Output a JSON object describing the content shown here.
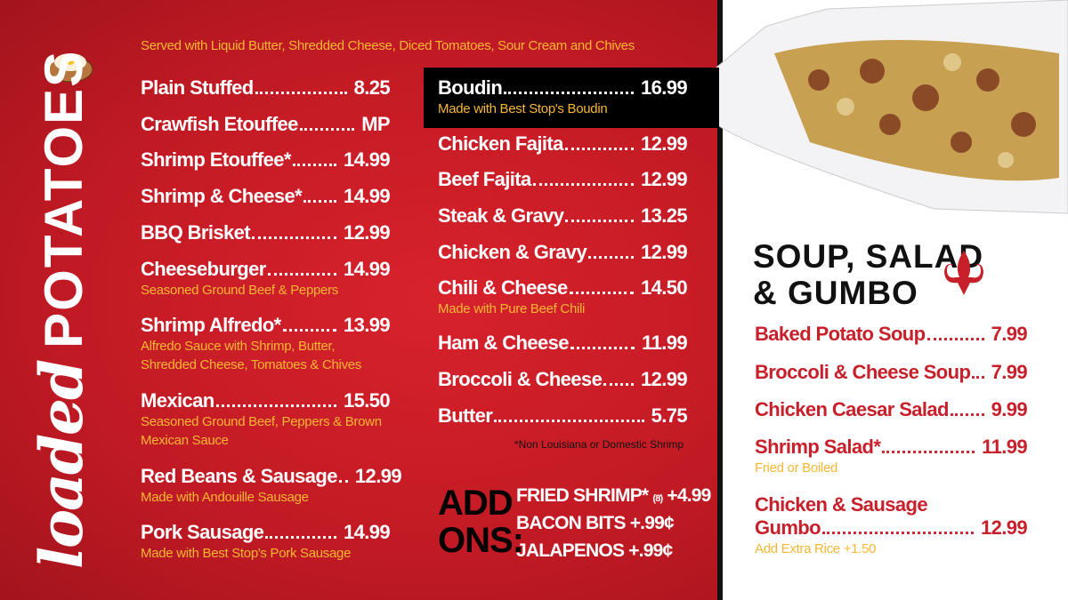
{
  "colors": {
    "red": "#c8202b",
    "accent": "#f7b733",
    "black": "#000000",
    "white": "#ffffff"
  },
  "loaded": {
    "title_script": "loaded",
    "title_block": "POTATOES",
    "intro": "Served with Liquid Butter, Shredded Cheese, Diced Tomatoes, Sour Cream and Chives",
    "left": [
      {
        "name": "Plain Stuffed",
        "price": "8.25"
      },
      {
        "name": "Crawfish Etouffee",
        "price": "MP"
      },
      {
        "name": "Shrimp Etouffee*",
        "price": "14.99"
      },
      {
        "name": "Shrimp & Cheese*",
        "price": "14.99"
      },
      {
        "name": "BBQ Brisket",
        "price": "12.99"
      },
      {
        "name": "Cheeseburger",
        "price": "14.99",
        "desc": [
          "Seasoned Ground Beef & Peppers"
        ]
      },
      {
        "name": "Shrimp Alfredo*",
        "price": "13.99",
        "desc": [
          "Alfredo Sauce with Shrimp, Butter,",
          "Shredded Cheese, Tomatoes & Chives"
        ]
      },
      {
        "name": "Mexican",
        "price": "15.50",
        "desc": [
          "Seasoned Ground Beef, Peppers & Brown",
          "Mexican Sauce"
        ]
      },
      {
        "name": "Red Beans & Sausage",
        "price": "12.99",
        "desc": [
          "Made with Andouille Sausage"
        ]
      },
      {
        "name": "Pork Sausage",
        "price": "14.99",
        "desc": [
          "Made with Best Stop's Pork Sausage"
        ]
      }
    ],
    "middle": [
      {
        "name": "Boudin",
        "price": "16.99",
        "desc": [
          "Made with Best Stop's Boudin"
        ]
      },
      {
        "name": "Chicken Fajita",
        "price": "12.99"
      },
      {
        "name": "Beef Fajita",
        "price": "12.99"
      },
      {
        "name": "Steak & Gravy",
        "price": "13.25"
      },
      {
        "name": "Chicken & Gravy",
        "price": "12.99"
      },
      {
        "name": "Chili & Cheese",
        "price": "14.50",
        "desc": [
          "Made with Pure Beef Chili"
        ]
      },
      {
        "name": "Ham & Cheese",
        "price": "11.99"
      },
      {
        "name": "Broccoli & Cheese",
        "price": "12.99"
      },
      {
        "name": "Butter",
        "price": "5.75"
      }
    ],
    "note": "*Non Louisiana or Domestic Shrimp"
  },
  "addons": {
    "title1": "ADD",
    "title2": "ONS:",
    "items": [
      {
        "name": "FRIED SHRIMP*",
        "qty": "(8)",
        "price": "+4.99"
      },
      {
        "name": "BACON BITS",
        "price": "+.99¢"
      },
      {
        "name": "JALAPENOS",
        "price": "+.99¢"
      }
    ]
  },
  "soup": {
    "title1": "SOUP, SALAD",
    "title2": "& GUMBO",
    "icon": "fleur-de-lis-icon",
    "items": [
      {
        "name": "Baked Potato Soup",
        "price": "7.99"
      },
      {
        "name": "Broccoli & Cheese Soup",
        "price": "7.99"
      },
      {
        "name": "Chicken Caesar Salad",
        "price": "9.99"
      },
      {
        "name": "Shrimp Salad*",
        "price": "11.99",
        "desc": [
          "Fried or Boiled"
        ]
      },
      {
        "name": "Chicken & Sausage",
        "name2": "Gumbo",
        "price": "12.99",
        "desc": [
          "Add Extra Rice  +1.50"
        ]
      }
    ]
  }
}
